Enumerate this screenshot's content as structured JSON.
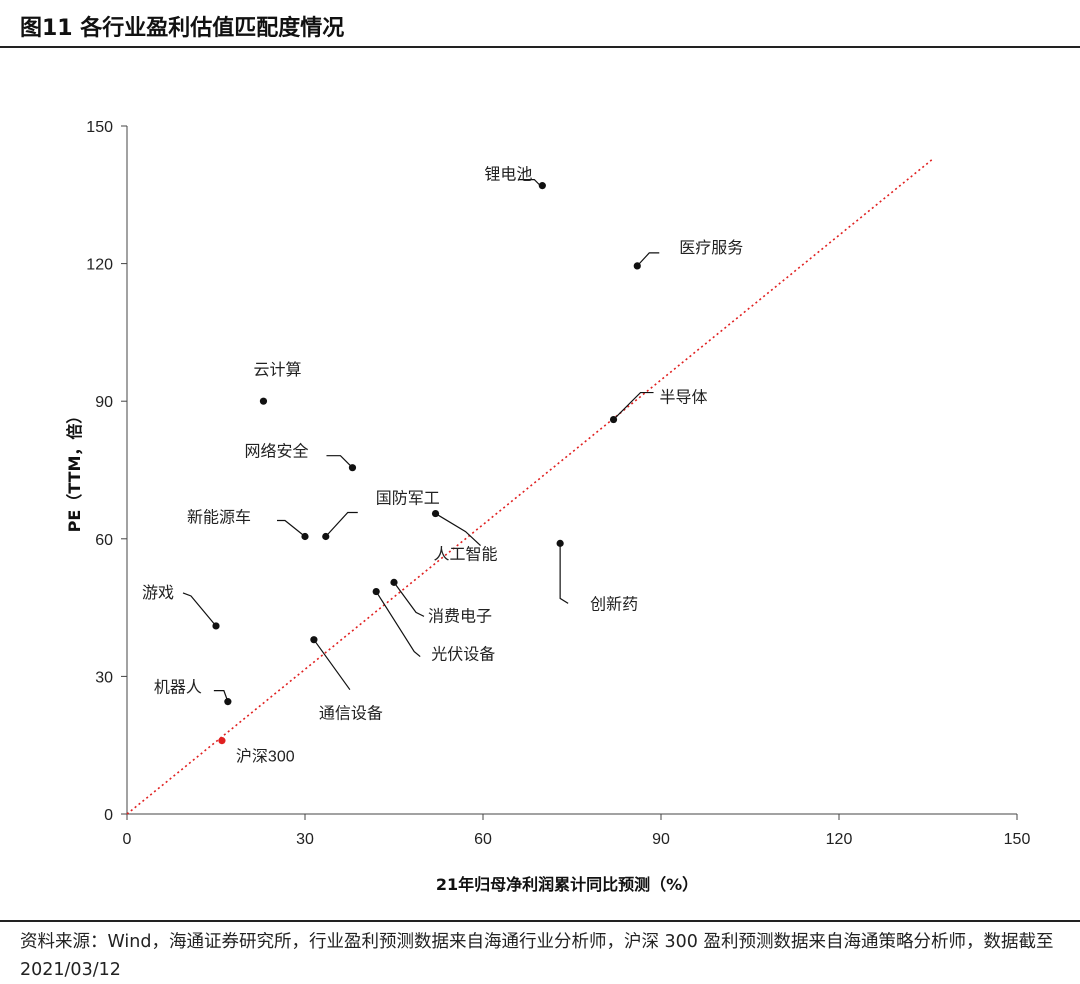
{
  "figure": {
    "title": "图11 各行业盈利估值匹配度情况",
    "footer": "资料来源：Wind，海通证券研究所，行业盈利预测数据来自海通行业分析师，沪深 300 盈利预测数据来自海通策略分析师，数据截至 2021/03/12"
  },
  "chart_data": {
    "type": "scatter",
    "xlabel": "21年归母净利润累计同比预测（%）",
    "ylabel": "PE（TTM，倍）",
    "xlim": [
      0,
      150
    ],
    "ylim": [
      0,
      150
    ],
    "xticks": [
      0,
      30,
      60,
      90,
      120,
      150
    ],
    "yticks": [
      0,
      30,
      60,
      90,
      120,
      150
    ],
    "grid": false,
    "colors": {
      "point": "#111111",
      "highlight": "#e02020",
      "trend": "#e02020"
    },
    "trendline": {
      "style": "dotted",
      "from": [
        0,
        0
      ],
      "to": [
        136,
        143
      ]
    },
    "points": [
      {
        "label": "锂电池",
        "x": 70,
        "y": 137
      },
      {
        "label": "医疗服务",
        "x": 86,
        "y": 119.5
      },
      {
        "label": "云计算",
        "x": 23,
        "y": 90
      },
      {
        "label": "半导体",
        "x": 82,
        "y": 86
      },
      {
        "label": "网络安全",
        "x": 38,
        "y": 75.5
      },
      {
        "label": "国防军工",
        "x": 33.5,
        "y": 60.5
      },
      {
        "label": "新能源车",
        "x": 30,
        "y": 60.5
      },
      {
        "label": "人工智能",
        "x": 52,
        "y": 65.5
      },
      {
        "label": "创新药",
        "x": 73,
        "y": 59
      },
      {
        "label": "游戏",
        "x": 15,
        "y": 41
      },
      {
        "label": "消费电子",
        "x": 45,
        "y": 50.5
      },
      {
        "label": "光伏设备",
        "x": 42,
        "y": 48.5
      },
      {
        "label": "通信设备",
        "x": 31.5,
        "y": 38
      },
      {
        "label": "机器人",
        "x": 17,
        "y": 24.5
      },
      {
        "label": "沪深300",
        "x": 16,
        "y": 16,
        "highlight": true
      }
    ]
  }
}
